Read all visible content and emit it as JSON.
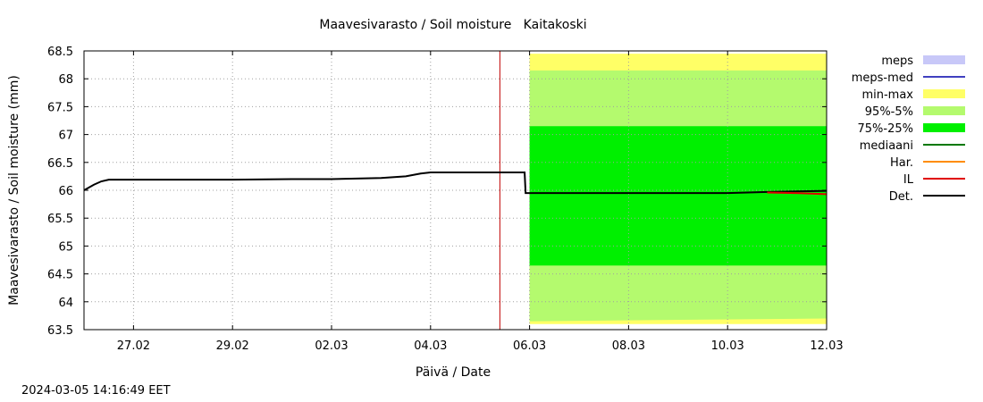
{
  "timestamp": "2024-03-05 14:16:49 EET",
  "chart_data": {
    "type": "area",
    "title": "Maavesivarasto / Soil moisture   Kaitakoski",
    "xlabel": "Päivä / Date",
    "ylabel": "Maavesivarasto / Soil moisture (mm)",
    "ylim": [
      63.5,
      68.5
    ],
    "yticks": [
      "63.5",
      "64",
      "64.5",
      "65",
      "65.5",
      "66",
      "66.5",
      "67",
      "67.5",
      "68",
      "68.5"
    ],
    "xlim_days": [
      0,
      15
    ],
    "xticks": [
      {
        "day": 1,
        "label": "27.02"
      },
      {
        "day": 3,
        "label": "29.02"
      },
      {
        "day": 5,
        "label": "02.03"
      },
      {
        "day": 7,
        "label": "04.03"
      },
      {
        "day": 9,
        "label": "06.03"
      },
      {
        "day": 11,
        "label": "08.03"
      },
      {
        "day": 13,
        "label": "10.03"
      },
      {
        "day": 15,
        "label": "12.03"
      }
    ],
    "grid": true,
    "current_time_day": 8.4,
    "forecast_start_day": 9.0,
    "legend_position": "right",
    "legend": [
      {
        "name": "meps",
        "style": "area",
        "color": "#c8c8f8"
      },
      {
        "name": "meps-med",
        "style": "line",
        "color": "#4040c0"
      },
      {
        "name": "min-max",
        "style": "area",
        "color": "#ffff66"
      },
      {
        "name": "95%-5%",
        "style": "area",
        "color": "#b4fa6e"
      },
      {
        "name": "75%-25%",
        "style": "area",
        "color": "#00f000"
      },
      {
        "name": "mediaani",
        "style": "line",
        "color": "#007800"
      },
      {
        "name": "Har.",
        "style": "line",
        "color": "#ff8c00"
      },
      {
        "name": "IL",
        "style": "line",
        "color": "#e00000"
      },
      {
        "name": "Det.",
        "style": "line",
        "color": "#000000"
      }
    ],
    "bands": [
      {
        "name": "min-max",
        "color": "#ffff66",
        "x": [
          9.0,
          15.0
        ],
        "low": [
          63.6,
          63.6
        ],
        "high": [
          68.45,
          68.45
        ]
      },
      {
        "name": "95%-5%",
        "color": "#b4fa6e",
        "x": [
          9.0,
          15.0
        ],
        "low": [
          63.65,
          63.7
        ],
        "high": [
          68.15,
          68.15
        ]
      },
      {
        "name": "75%-25%",
        "color": "#00f000",
        "x": [
          9.0,
          15.0
        ],
        "low": [
          64.65,
          64.65
        ],
        "high": [
          67.15,
          67.15
        ]
      }
    ],
    "series": [
      {
        "name": "Det.",
        "color": "#000000",
        "x": [
          0.0,
          0.2,
          0.35,
          0.5,
          1.0,
          3.0,
          4.2,
          5.0,
          5.5,
          6.0,
          6.5,
          6.8,
          7.0,
          7.5,
          8.0,
          8.9,
          8.92,
          9.0,
          10.0,
          12.0,
          13.0,
          13.8,
          15.0
        ],
        "y": [
          66.0,
          66.1,
          66.16,
          66.19,
          66.19,
          66.19,
          66.2,
          66.2,
          66.21,
          66.22,
          66.25,
          66.3,
          66.32,
          66.32,
          66.32,
          66.32,
          65.95,
          65.95,
          65.95,
          65.95,
          65.95,
          65.97,
          65.99
        ]
      },
      {
        "name": "IL",
        "color": "#e00000",
        "x": [
          13.8,
          14.4,
          15.0
        ],
        "y": [
          65.96,
          65.95,
          65.93
        ]
      }
    ]
  }
}
